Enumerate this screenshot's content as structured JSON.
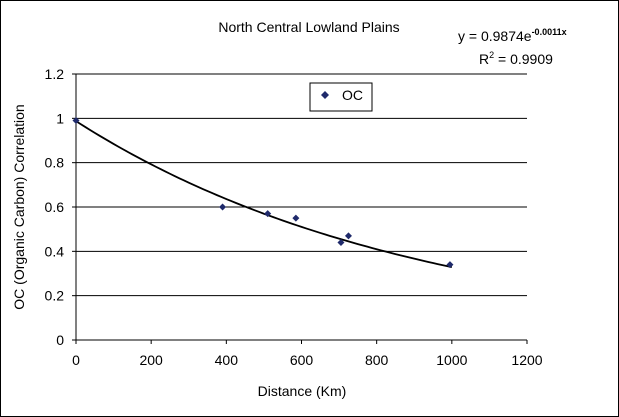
{
  "chart_data": {
    "type": "scatter",
    "title": "North Central Lowland Plains",
    "xlabel": "Distance (Km)",
    "ylabel": "OC (Organic Carbon) Correlation",
    "xlim": [
      0,
      1200
    ],
    "ylim": [
      0,
      1.2
    ],
    "xticks": [
      "0",
      "200",
      "400",
      "600",
      "800",
      "1000",
      "1200"
    ],
    "yticks": [
      "0",
      "0.2",
      "0.4",
      "0.6",
      "0.8",
      "1",
      "1.2"
    ],
    "grid": "horizontal",
    "legend": {
      "placement": "top-center",
      "entries": [
        "OC"
      ]
    },
    "series": [
      {
        "name": "OC",
        "color": "#1f2a6b",
        "marker": "diamond",
        "points": [
          {
            "x": 0,
            "y": 0.99
          },
          {
            "x": 390,
            "y": 0.6
          },
          {
            "x": 510,
            "y": 0.57
          },
          {
            "x": 585,
            "y": 0.55
          },
          {
            "x": 705,
            "y": 0.44
          },
          {
            "x": 725,
            "y": 0.47
          },
          {
            "x": 995,
            "y": 0.34
          }
        ]
      }
    ],
    "trendline": {
      "type": "exponential",
      "a": 0.9874,
      "b": -0.0011,
      "x_range": [
        0,
        1000
      ],
      "color": "#000000"
    },
    "annotations": {
      "equation_base": "y = 0.9874e",
      "equation_exponent": "-0.0011x",
      "r2_label": "R",
      "r2_sup": "2",
      "r2_value": " = 0.9909"
    }
  }
}
